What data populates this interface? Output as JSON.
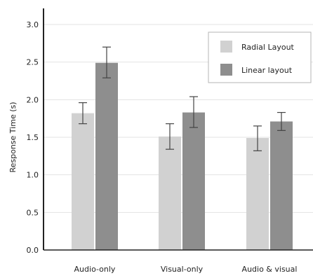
{
  "chart_data": {
    "type": "bar",
    "title": "",
    "xlabel": "",
    "ylabel": "Response Time (s)",
    "ylim": [
      0,
      3.0
    ],
    "yticks": [
      "0.0",
      "0.5",
      "1.0",
      "1.5",
      "2.0",
      "2.5",
      "3.0"
    ],
    "grid": true,
    "legend_position": "top-right",
    "categories": [
      "Audio-only",
      "Visual-only",
      "Audio & visual"
    ],
    "series": [
      {
        "name": "Radial Layout",
        "color": "#d1d1d1",
        "values": [
          1.82,
          1.51,
          1.49
        ],
        "error_low": [
          1.68,
          1.34,
          1.32
        ],
        "error_high": [
          1.96,
          1.68,
          1.65
        ]
      },
      {
        "name": "Linear layout",
        "color": "#8e8e8e",
        "values": [
          2.49,
          1.83,
          1.71
        ],
        "error_low": [
          2.29,
          1.63,
          1.59
        ],
        "error_high": [
          2.7,
          2.04,
          1.83
        ]
      }
    ]
  }
}
